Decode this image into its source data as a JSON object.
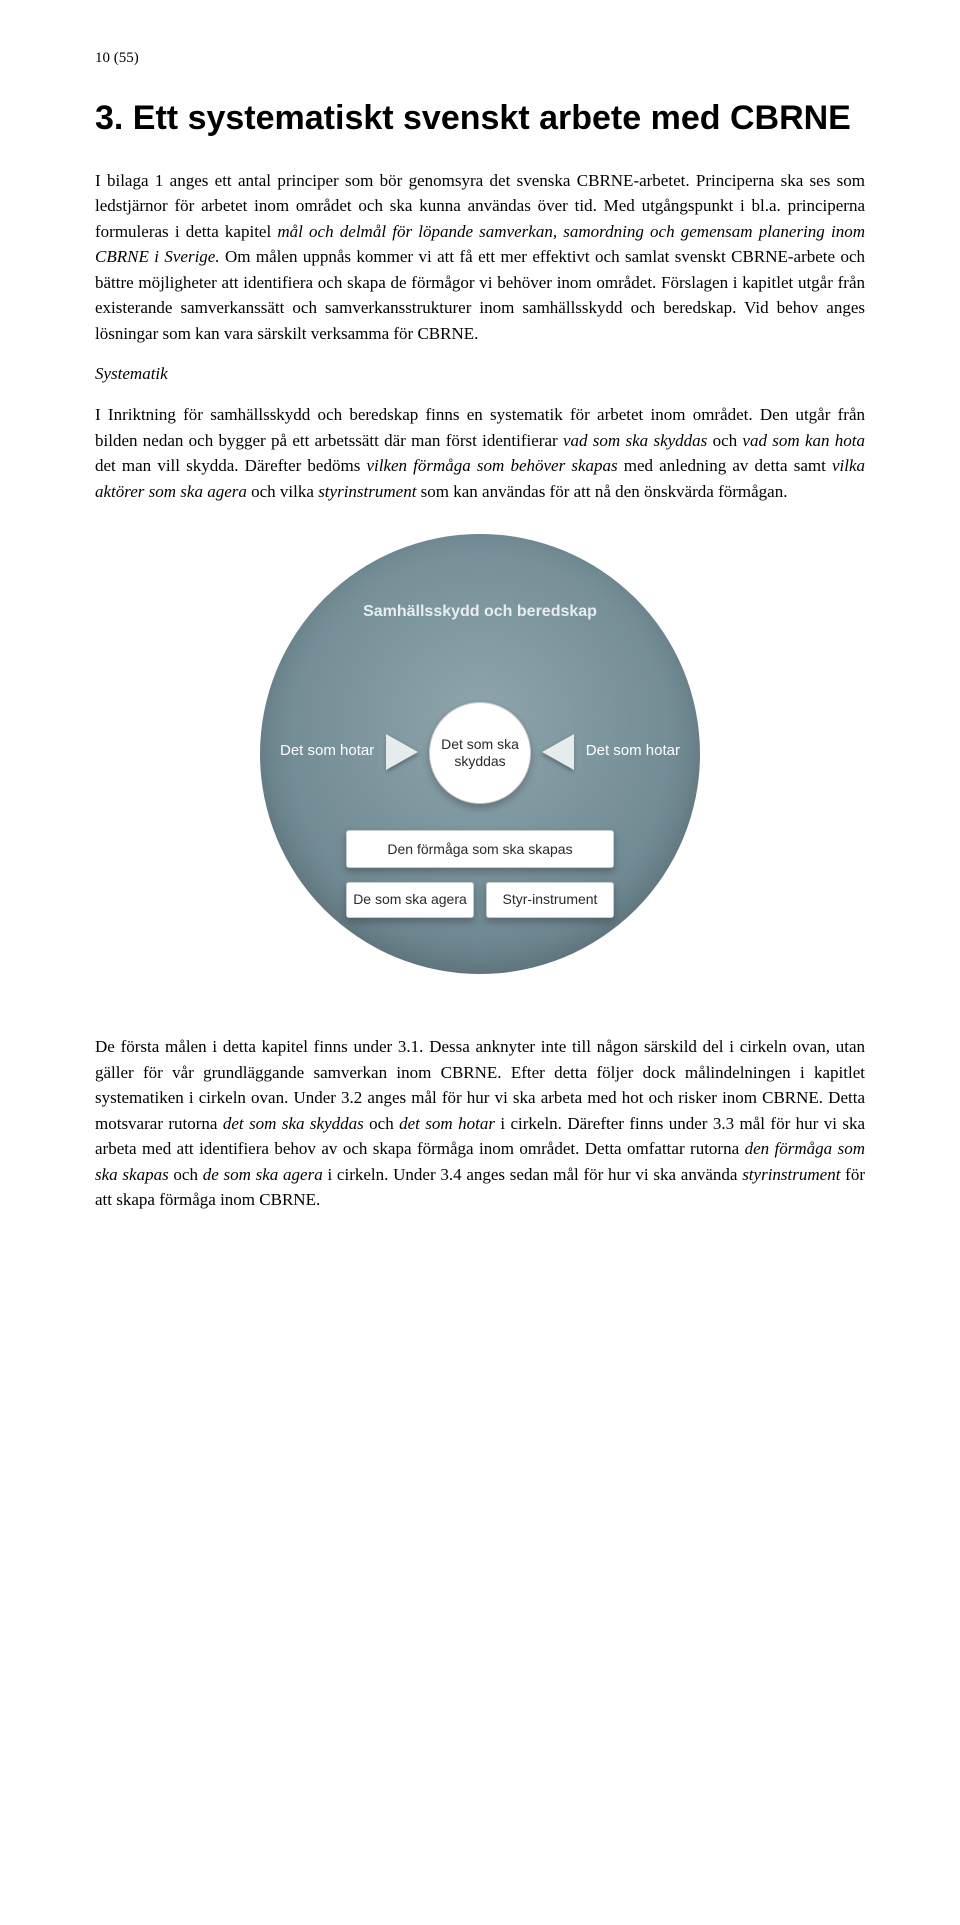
{
  "pageNumber": "10 (55)",
  "heading": "3. Ett systematiskt svenskt arbete med CBRNE",
  "para1_pre": "I bilaga 1 anges ett antal principer som bör genomsyra det svenska CBRNE-arbetet. Principerna ska ses som ledstjärnor för arbetet inom området och ska kunna användas över tid. Med utgångspunkt i bl.a. principerna formuleras i detta kapitel ",
  "para1_italic": "mål och delmål för löpande samverkan, samordning och gemensam planering inom CBRNE i Sverige.",
  "para1_post": " Om målen uppnås kommer vi att få ett mer effektivt och samlat svenskt CBRNE-arbete och bättre möjligheter att identifiera och skapa de förmågor vi behöver inom området. Förslagen i kapitlet utgår från existerande samverkanssätt och samverkansstrukturer inom samhällsskydd och beredskap. Vid behov anges lösningar som kan vara särskilt verksamma för CBRNE.",
  "subhead": "Systematik",
  "para2_a": "I Inriktning för samhällsskydd och beredskap finns en systematik för arbetet inom området. Den utgår från bilden nedan och bygger på ett arbetssätt där man först identifierar ",
  "para2_i1": "vad som ska skyddas",
  "para2_b": " och ",
  "para2_i2": "vad som kan hota",
  "para2_c": " det man vill skydda. Därefter bedöms ",
  "para2_i3": "vilken förmåga som behöver skapas",
  "para2_d": " med anledning av detta samt ",
  "para2_i4": "vilka aktörer som ska agera",
  "para2_e": " och vilka ",
  "para2_i5": "styrinstrument",
  "para2_f": " som kan användas för att nå den önskvärda förmågan.",
  "diagram": {
    "title": "Samhällsskydd och beredskap",
    "center": "Det som ska skyddas",
    "leftLabel": "Det som hotar",
    "rightLabel": "Det som hotar",
    "wideBox": "Den förmåga som ska skapas",
    "boxLeft": "De som ska agera",
    "boxRight": "Styr-instrument"
  },
  "para3_a": "De första målen i detta kapitel finns under 3.1. Dessa anknyter inte till någon särskild del i cirkeln ovan, utan gäller för vår grundläggande samverkan inom CBRNE. Efter detta följer dock målindelningen i kapitlet systematiken i cirkeln ovan. Under 3.2 anges mål för hur vi ska arbeta med hot och risker inom CBRNE. Detta motsvarar rutorna ",
  "para3_i1": "det som ska skyddas",
  "para3_b": " och ",
  "para3_i2": "det som hotar",
  "para3_c": " i cirkeln. Därefter finns under 3.3 mål för hur vi ska arbeta med att identifiera behov av och skapa förmåga inom området. Detta omfattar rutorna ",
  "para3_i3": "den förmåga som ska skapas",
  "para3_d": " och ",
  "para3_i4": "de som ska agera",
  "para3_e": " i cirkeln. Under 3.4 anges sedan mål för hur vi ska använda ",
  "para3_i5": "styrinstrument",
  "para3_f": " för att skapa förmåga inom CBRNE."
}
